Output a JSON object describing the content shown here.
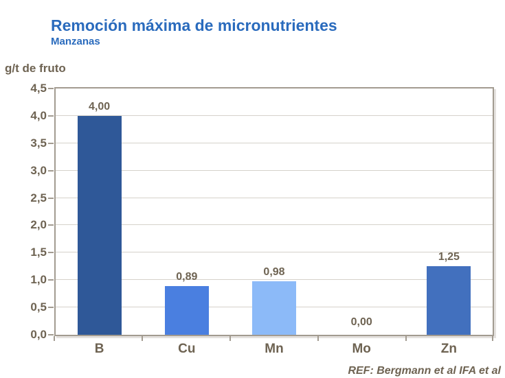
{
  "header": {
    "title": "Remoción máxima de micronutrientes",
    "subtitle": "Manzanas"
  },
  "footer": {
    "reference": "REF: Bergmann et al IFA et al"
  },
  "colors": {
    "title_blue": "#2A6BBD",
    "label_brown": "#6E6352",
    "plot_border": "#A29B90",
    "gridline": "#D5D1CA"
  },
  "chart_data": {
    "type": "bar",
    "title": "Remoción máxima de micronutrientes",
    "subtitle": "Manzanas",
    "ylabel": "g/t de fruto",
    "xlabel": "",
    "categories": [
      "B",
      "Cu",
      "Mn",
      "Mo",
      "Zn"
    ],
    "values": [
      4.0,
      0.89,
      0.98,
      0.0,
      1.25
    ],
    "value_labels": [
      "4,00",
      "0,89",
      "0,98",
      "0,00",
      "1,25"
    ],
    "bar_colors": [
      "#2F5898",
      "#4A7FE0",
      "#8CBAF8",
      "#4270BE",
      "#4270BE"
    ],
    "ylim": [
      0,
      4.5
    ],
    "ytick_step": 0.5,
    "ytick_labels": [
      "0,0",
      "0,5",
      "1,0",
      "1,5",
      "2,0",
      "2,5",
      "3,0",
      "3,5",
      "4,0",
      "4,5"
    ],
    "grid": true,
    "legend": false,
    "decimal_separator": ",",
    "reference": "REF: Bergmann et al IFA et al"
  }
}
